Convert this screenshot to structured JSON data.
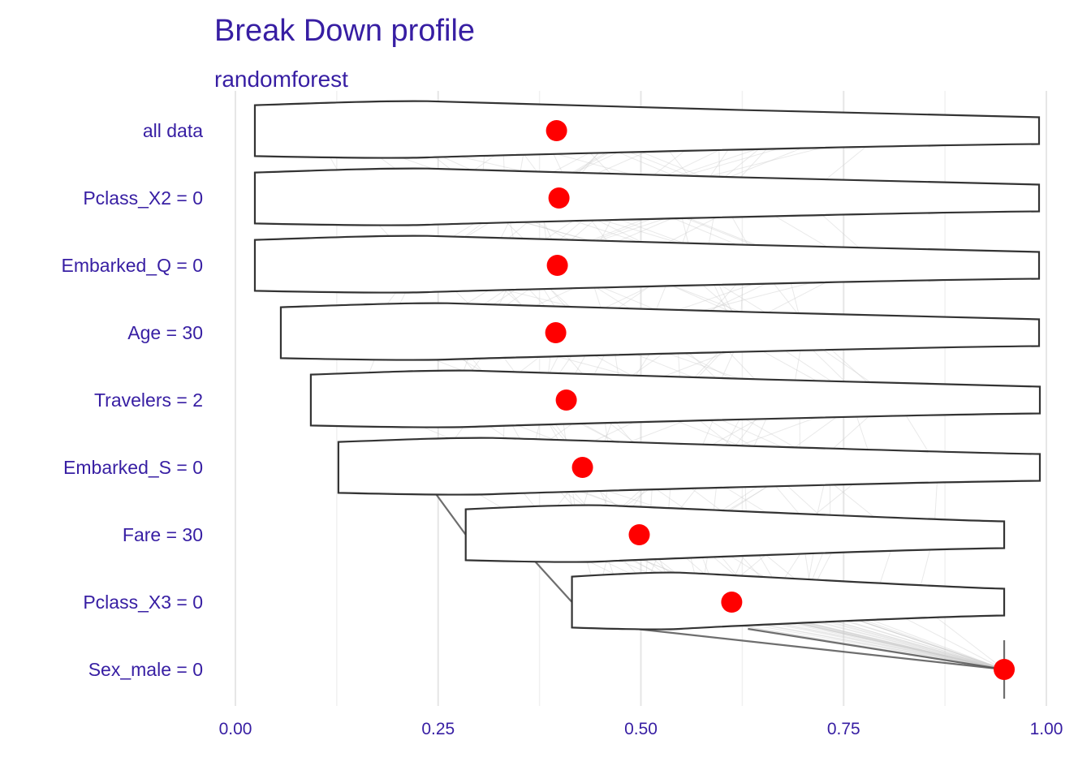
{
  "chart_data": {
    "type": "violin",
    "title": "Break Down profile",
    "subtitle": "randomforest",
    "xlabel": "",
    "ylabel": "",
    "xlim": [
      0,
      1
    ],
    "x_ticks": [
      {
        "value": 0,
        "label": "0.00"
      },
      {
        "value": 0.25,
        "label": "0.25"
      },
      {
        "value": 0.5,
        "label": "0.50"
      },
      {
        "value": 0.75,
        "label": "0.75"
      },
      {
        "value": 1,
        "label": "1.00"
      }
    ],
    "grid": true,
    "legend": "none",
    "point_color": "#ff0000",
    "text_color": "#371ea3",
    "rows": [
      {
        "label": "all data",
        "point": 0.396,
        "min": 0.024,
        "max": 0.991
      },
      {
        "label": "Pclass_X2 = 0",
        "point": 0.399,
        "min": 0.024,
        "max": 0.991
      },
      {
        "label": "Embarked_Q = 0",
        "point": 0.397,
        "min": 0.024,
        "max": 0.991
      },
      {
        "label": "Age = 30",
        "point": 0.395,
        "min": 0.056,
        "max": 0.991
      },
      {
        "label": "Travelers = 2",
        "point": 0.408,
        "min": 0.093,
        "max": 0.992
      },
      {
        "label": "Embarked_S = 0",
        "point": 0.428,
        "min": 0.127,
        "max": 0.992
      },
      {
        "label": "Fare = 30",
        "point": 0.498,
        "min": 0.284,
        "max": 0.948
      },
      {
        "label": "Pclass_X3 = 0",
        "point": 0.612,
        "min": 0.415,
        "max": 0.948
      },
      {
        "label": "Sex_male = 0",
        "point": 0.948,
        "min": 0.948,
        "max": 0.948
      }
    ]
  }
}
